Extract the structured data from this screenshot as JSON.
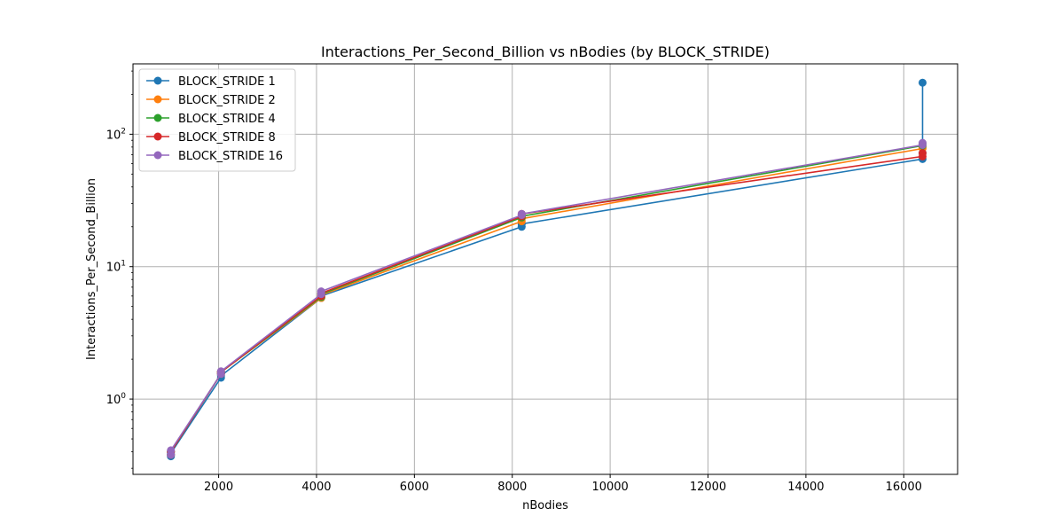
{
  "chart_data": {
    "type": "line",
    "title": "Interactions_Per_Second_Billion vs nBodies (by BLOCK_STRIDE)",
    "xlabel": "nBodies",
    "ylabel": "Interactions_Per_Second_Billion",
    "xlim": [
      250,
      17100
    ],
    "ylim": [
      0.27,
      340
    ],
    "yscale": "log",
    "grid": true,
    "legend_position": "top-left",
    "xticks": [
      2000,
      4000,
      6000,
      8000,
      10000,
      12000,
      14000,
      16000
    ],
    "xtick_labels": [
      "2000",
      "4000",
      "6000",
      "8000",
      "10000",
      "12000",
      "14000",
      "16000"
    ],
    "yticks": [
      1,
      10,
      100
    ],
    "ytick_labels": [
      "10^0",
      "10^1",
      "10^2"
    ],
    "series": [
      {
        "name": "BLOCK_STRIDE 1",
        "color": "#1f77b4",
        "x": [
          1024,
          1024,
          2048,
          2048,
          4096,
          4096,
          8192,
          8192,
          16384,
          16384,
          16384
        ],
        "y": [
          0.37,
          0.39,
          1.45,
          1.5,
          5.8,
          6.0,
          20.0,
          21.0,
          65,
          72,
          245
        ]
      },
      {
        "name": "BLOCK_STRIDE 2",
        "color": "#ff7f0e",
        "x": [
          1024,
          1024,
          2048,
          2048,
          4096,
          4096,
          8192,
          8192,
          16384,
          16384
        ],
        "y": [
          0.38,
          0.4,
          1.55,
          1.6,
          5.8,
          6.1,
          22.0,
          23.0,
          78,
          80
        ]
      },
      {
        "name": "BLOCK_STRIDE 4",
        "color": "#2ca02c",
        "x": [
          1024,
          1024,
          2048,
          2048,
          4096,
          4096,
          8192,
          8192,
          16384,
          16384
        ],
        "y": [
          0.38,
          0.4,
          1.55,
          1.6,
          5.9,
          6.2,
          23.5,
          24.0,
          82,
          85
        ]
      },
      {
        "name": "BLOCK_STRIDE 8",
        "color": "#d62728",
        "x": [
          1024,
          1024,
          2048,
          2048,
          4096,
          4096,
          8192,
          8192,
          16384,
          16384
        ],
        "y": [
          0.38,
          0.4,
          1.55,
          1.6,
          6.0,
          6.3,
          24.0,
          25.0,
          68,
          72
        ]
      },
      {
        "name": "BLOCK_STRIDE 16",
        "color": "#9467bd",
        "x": [
          1024,
          1024,
          2048,
          2048,
          4096,
          4096,
          8192,
          8192,
          16384,
          16384
        ],
        "y": [
          0.38,
          0.41,
          1.55,
          1.62,
          6.2,
          6.5,
          24.5,
          25.0,
          83,
          86
        ]
      }
    ]
  }
}
